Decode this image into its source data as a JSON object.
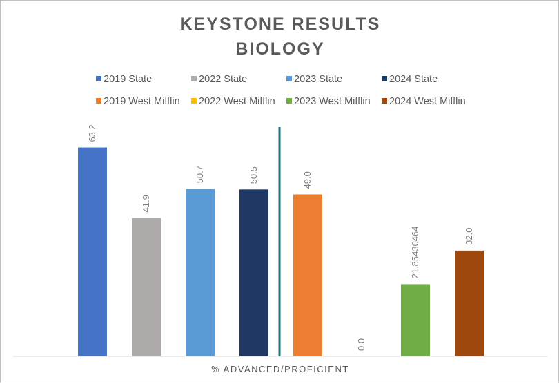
{
  "chart_data": {
    "type": "bar",
    "title": "KEYSTONE  RESULTS",
    "subtitle": "BIOLOGY",
    "xlabel": "% ADVANCED/PROFICIENT",
    "ylabel": "",
    "ylim": [
      0,
      70
    ],
    "grid": false,
    "legend_position": "top",
    "divider_after_series": 4,
    "series": [
      {
        "name": "2019 State",
        "value": 63.2,
        "label": "63.2",
        "color": "#4472c4"
      },
      {
        "name": "2022 State",
        "value": 41.9,
        "label": "41.9",
        "color": "#aeaaaa"
      },
      {
        "name": "2023 State",
        "value": 50.7,
        "label": "50.7",
        "color": "#5b9bd5"
      },
      {
        "name": "2024 State",
        "value": 50.5,
        "label": "50.5",
        "color": "#203864"
      },
      {
        "name": "2019 West Mifflin",
        "value": 49.0,
        "label": "49.0",
        "color": "#ed7d31"
      },
      {
        "name": "2022 West Mifflin",
        "value": 0.0,
        "label": "0.0",
        "color": "#ffc000"
      },
      {
        "name": "2023 West Mifflin",
        "value": 21.85430464,
        "label": "21.85430464",
        "color": "#70ad47"
      },
      {
        "name": "2024 West Mifflin",
        "value": 32.0,
        "label": "32.0",
        "color": "#9e480e"
      }
    ],
    "divider_color": "#1f6f78"
  }
}
